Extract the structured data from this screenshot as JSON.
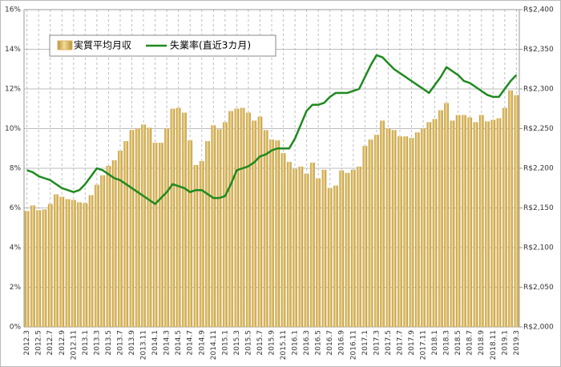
{
  "chart_data": {
    "type": "combo",
    "categories": [
      "2012.3",
      null,
      "2012.5",
      null,
      "2012.7",
      null,
      "2012.9",
      null,
      "2012.11",
      null,
      "2013.1",
      null,
      "2013.3",
      null,
      "2013.5",
      null,
      "2013.7",
      null,
      "2013.9",
      null,
      "2013.11",
      null,
      "2014.1",
      null,
      "2014.3",
      null,
      "2014.5",
      null,
      "2014.7",
      null,
      "2014.9",
      null,
      "2014.11",
      null,
      "2015.1",
      null,
      "2015.3",
      null,
      "2015.5",
      null,
      "2015.7",
      null,
      "2015.9",
      null,
      "2015.11",
      null,
      "2016.1",
      null,
      "2016.3",
      null,
      "2016.5",
      null,
      "2016.7",
      null,
      "2016.9",
      null,
      "2016.11",
      null,
      "2017.1",
      null,
      "2017.3",
      null,
      "2017.5",
      null,
      "2017.7",
      null,
      "2017.9",
      null,
      "2017.11",
      null,
      "2018.1",
      null,
      "2018.3",
      null,
      "2018.5",
      null,
      "2018.7",
      null,
      "2018.9",
      null,
      "2018.11",
      null,
      "2019.1",
      null,
      "2019.3"
    ],
    "series": [
      {
        "name": "実質平均月収",
        "type": "bar",
        "axis": "y2",
        "color": "#d9b65c",
        "values": [
          2146,
          2153,
          2147,
          2148,
          2155,
          2167,
          2164,
          2161,
          2160,
          2157,
          2156,
          2166,
          2179,
          2191,
          2203,
          2210,
          2222,
          2234,
          2248,
          2250,
          2255,
          2251,
          2232,
          2232,
          2250,
          2275,
          2276,
          2270,
          2235,
          2204,
          2209,
          2234,
          2254,
          2249,
          2258,
          2272,
          2275,
          2276,
          2270,
          2260,
          2265,
          2248,
          2236,
          2235,
          2219,
          2208,
          2199,
          2202,
          2193,
          2207,
          2187,
          2198,
          2175,
          2178,
          2197,
          2194,
          2198,
          2202,
          2228,
          2236,
          2242,
          2260,
          2250,
          2248,
          2240,
          2240,
          2238,
          2245,
          2250,
          2258,
          2262,
          2273,
          2282,
          2260,
          2267,
          2267,
          2264,
          2258,
          2267,
          2259,
          2261,
          2263,
          2276,
          2298,
          2292
        ]
      },
      {
        "name": "失業率(直近3カ月)",
        "type": "line",
        "axis": "y",
        "color": "#1f8a1f",
        "values": [
          7.9,
          7.8,
          7.6,
          7.5,
          7.4,
          7.2,
          7.0,
          6.9,
          6.8,
          6.9,
          7.2,
          7.6,
          8.0,
          7.9,
          7.7,
          7.5,
          7.4,
          7.2,
          7.0,
          6.8,
          6.6,
          6.4,
          6.2,
          6.5,
          6.8,
          7.2,
          7.1,
          7.0,
          6.8,
          6.9,
          6.9,
          6.7,
          6.5,
          6.5,
          6.6,
          7.2,
          7.9,
          8.0,
          8.1,
          8.3,
          8.6,
          8.7,
          8.9,
          9.0,
          9.0,
          9.0,
          9.5,
          10.2,
          10.9,
          11.2,
          11.2,
          11.3,
          11.6,
          11.8,
          11.8,
          11.8,
          11.9,
          12.0,
          12.6,
          13.2,
          13.7,
          13.6,
          13.3,
          13.0,
          12.8,
          12.6,
          12.4,
          12.2,
          12.0,
          11.8,
          12.2,
          12.6,
          13.1,
          12.9,
          12.7,
          12.4,
          12.3,
          12.1,
          11.9,
          11.7,
          11.6,
          11.6,
          12.0,
          12.4,
          12.7
        ]
      }
    ],
    "ylim": [
      0,
      16
    ],
    "yticks": [
      {
        "value": 0,
        "label": "0%"
      },
      {
        "value": 2,
        "label": "2%"
      },
      {
        "value": 4,
        "label": "4%"
      },
      {
        "value": 6,
        "label": "6%"
      },
      {
        "value": 8,
        "label": "8%"
      },
      {
        "value": 10,
        "label": "10%"
      },
      {
        "value": 12,
        "label": "12%"
      },
      {
        "value": 14,
        "label": "14%"
      },
      {
        "value": 16,
        "label": "16%"
      }
    ],
    "y2lim": [
      2000,
      2400
    ],
    "y2ticks": [
      {
        "value": 2000,
        "label": "R$2,000"
      },
      {
        "value": 2050,
        "label": "R$2,050"
      },
      {
        "value": 2100,
        "label": "R$2,100"
      },
      {
        "value": 2150,
        "label": "R$2,150"
      },
      {
        "value": 2200,
        "label": "R$2,200"
      },
      {
        "value": 2250,
        "label": "R$2,250"
      },
      {
        "value": 2300,
        "label": "R$2,300"
      },
      {
        "value": 2350,
        "label": "R$2,350"
      },
      {
        "value": 2400,
        "label": "R$2,400"
      }
    ],
    "grid": true,
    "legend": "top-left"
  }
}
